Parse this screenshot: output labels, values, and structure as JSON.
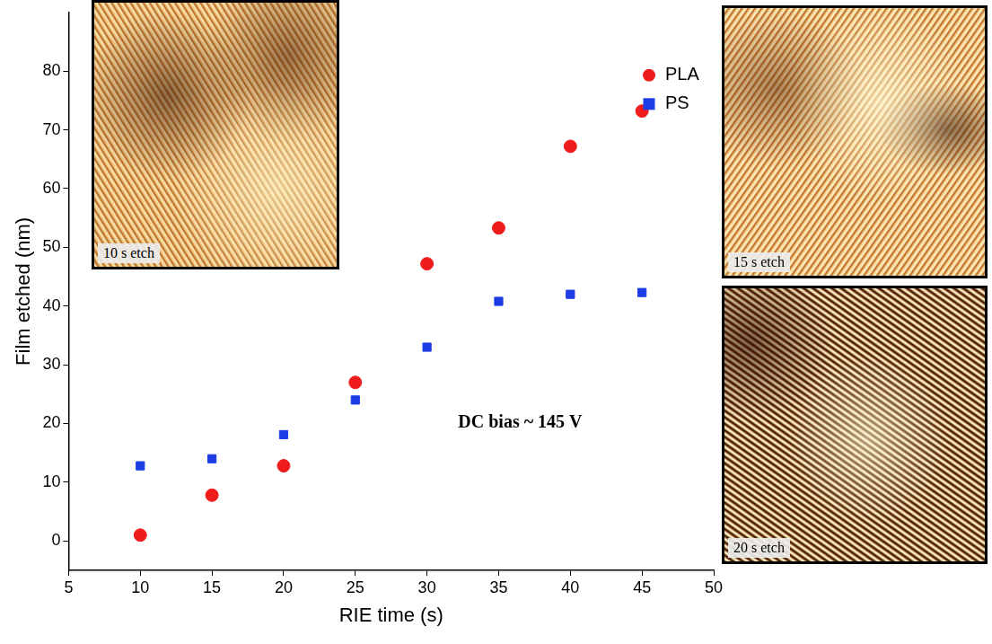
{
  "chart_data": {
    "type": "scatter",
    "x_label": "RIE time (s)",
    "y_label": "Film etched (nm)",
    "annotations": [
      "DC bias ~ 145 V"
    ],
    "insets": [
      "10 s etch",
      "15 s etch",
      "20 s etch"
    ],
    "series": [
      {
        "name": "PLA",
        "color": "#f01c1c",
        "marker": "circle",
        "x": [
          10,
          15,
          20,
          25,
          30,
          35,
          40,
          45
        ],
        "values": [
          1,
          7.8,
          12.8,
          27,
          47.2,
          53.3,
          67.2,
          73.2
        ]
      },
      {
        "name": "PS",
        "color": "#1c3ce6",
        "marker": "square",
        "x": [
          10,
          15,
          20,
          25,
          30,
          35,
          40,
          45
        ],
        "values": [
          12.8,
          14,
          18.1,
          24,
          33,
          40.8,
          42,
          42.3
        ]
      }
    ],
    "xlim": [
      5,
      50
    ],
    "xticks": [
      5,
      10,
      15,
      20,
      25,
      30,
      35,
      40,
      45,
      50
    ],
    "ylim": [
      -5,
      90
    ],
    "yticks": [
      0,
      10,
      20,
      30,
      40,
      50,
      60,
      70,
      80
    ],
    "grid": false,
    "legend": "upper right"
  }
}
